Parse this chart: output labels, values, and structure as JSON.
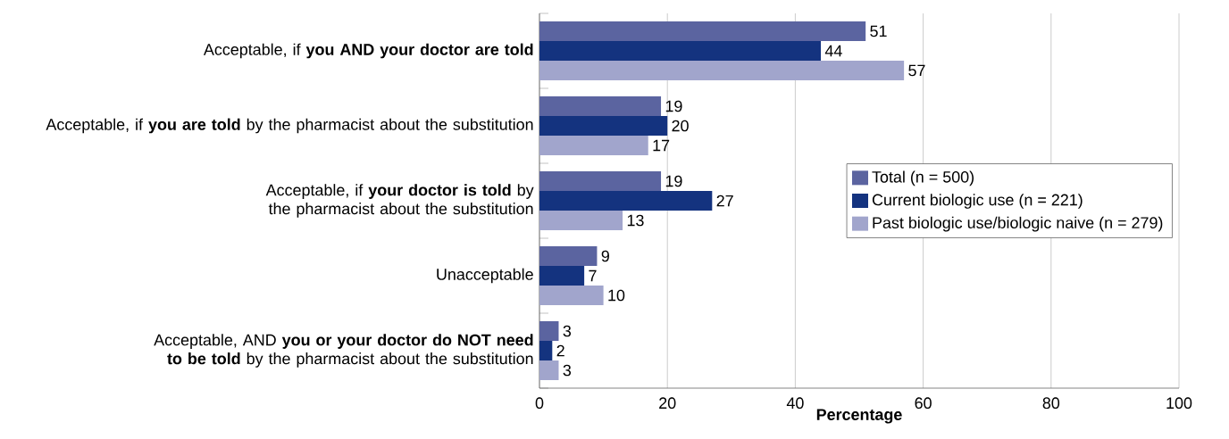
{
  "chart_data": {
    "type": "bar",
    "orientation": "horizontal",
    "xlabel": "Percentage",
    "categories": [
      "Acceptable, if **you AND your doctor are told**",
      "Acceptable, if **you are told** by the pharmacist about the substitution",
      "Acceptable, if **your doctor is told** by the pharmacist about the substitution",
      "Unacceptable",
      "Acceptable, AND **you or your doctor do NOT need to be told** by the pharmacist about the substitution"
    ],
    "series": [
      {
        "name": "Total (n = 500)",
        "color": "#5b64a0",
        "values": [
          51,
          19,
          19,
          9,
          3
        ]
      },
      {
        "name": "Current biologic use (n = 221)",
        "color": "#14337f",
        "values": [
          44,
          20,
          27,
          7,
          2
        ]
      },
      {
        "name": "Past biologic use/biologic naive (n = 279)",
        "color": "#a1a5cc",
        "values": [
          57,
          17,
          13,
          10,
          3
        ]
      }
    ],
    "xlim": [
      0,
      100
    ],
    "xticks": [
      0,
      20,
      40,
      60,
      80,
      100
    ],
    "grid": "x",
    "legend": "right",
    "data_labels": true
  }
}
